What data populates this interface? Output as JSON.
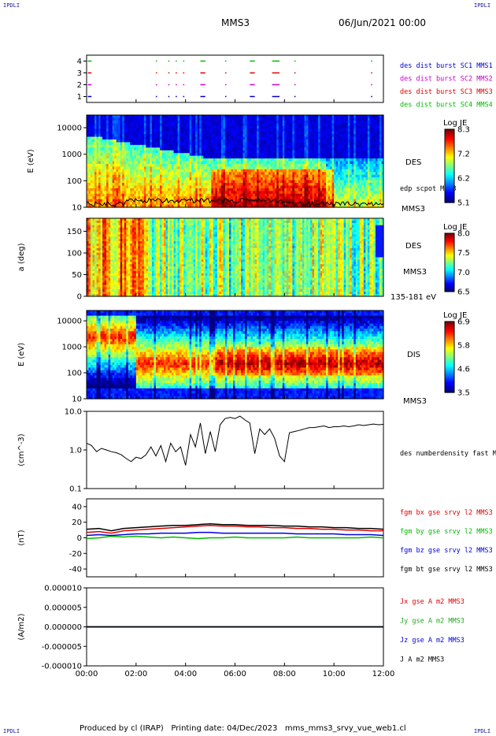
{
  "header": {
    "corner_tl": "IPDLI",
    "corner_tr": "IPDLI",
    "corner_bl": "IPDLI",
    "corner_br": "IPDLI",
    "spacecraft": "MMS3",
    "date": "06/Jun/2021 00:00"
  },
  "footer": {
    "produced": "Produced by cl (IRAP)",
    "printing": "Printing date: 04/Dec/2023",
    "filename": "mms_mms3_srvy_vue_web1.cl"
  },
  "colors": {
    "mms1": "#0000cc",
    "mms2": "#cc00cc",
    "mms3": "#dd0000",
    "mms4": "#00bb00",
    "bx": "#dd0000",
    "by": "#00bb00",
    "bz": "#0000dd",
    "bt": "#000000"
  },
  "chart_data": [
    {
      "type": "scatter",
      "panel": "burst availability",
      "y_ticks": [
        "1",
        "2",
        "3",
        "4"
      ],
      "ylim": [
        0.5,
        4.5
      ],
      "series": [
        {
          "name": "des dist burst SC1 MMS1",
          "y": 1,
          "segments_hours": [
            [
              0.05,
              0.2
            ],
            [
              2.8,
              2.83
            ],
            [
              3.3,
              3.35
            ],
            [
              3.6,
              3.65
            ],
            [
              3.9,
              3.95
            ],
            [
              4.6,
              4.8
            ],
            [
              5.6,
              5.65
            ],
            [
              6.6,
              6.8
            ],
            [
              7.5,
              7.8
            ],
            [
              8.4,
              8.45
            ],
            [
              11.5,
              11.55
            ]
          ]
        },
        {
          "name": "des dist burst SC2 MMS2",
          "y": 2,
          "segments_hours": [
            [
              0.05,
              0.2
            ],
            [
              2.8,
              2.83
            ],
            [
              3.3,
              3.35
            ],
            [
              3.6,
              3.65
            ],
            [
              3.9,
              3.95
            ],
            [
              4.6,
              4.8
            ],
            [
              5.6,
              5.65
            ],
            [
              6.6,
              6.8
            ],
            [
              7.5,
              7.8
            ],
            [
              8.4,
              8.45
            ],
            [
              11.5,
              11.55
            ]
          ]
        },
        {
          "name": "des dist burst SC3 MMS3",
          "y": 3,
          "segments_hours": [
            [
              0.05,
              0.2
            ],
            [
              2.8,
              2.83
            ],
            [
              3.3,
              3.35
            ],
            [
              3.6,
              3.65
            ],
            [
              3.9,
              3.95
            ],
            [
              4.6,
              4.8
            ],
            [
              5.6,
              5.65
            ],
            [
              6.6,
              6.8
            ],
            [
              7.5,
              7.8
            ],
            [
              8.4,
              8.45
            ],
            [
              11.5,
              11.55
            ]
          ]
        },
        {
          "name": "des dist burst SC4 MMS4",
          "y": 4,
          "segments_hours": [
            [
              0.05,
              0.2
            ],
            [
              2.8,
              2.83
            ],
            [
              3.3,
              3.35
            ],
            [
              3.6,
              3.65
            ],
            [
              3.9,
              3.95
            ],
            [
              4.6,
              4.8
            ],
            [
              5.6,
              5.65
            ],
            [
              6.6,
              6.8
            ],
            [
              7.5,
              7.8
            ],
            [
              8.4,
              8.45
            ],
            [
              11.5,
              11.55
            ]
          ]
        }
      ]
    },
    {
      "type": "heatmap",
      "panel": "electron energy spectrogram",
      "ylabel": "E (eV)",
      "y_ticks": [
        "10",
        "100",
        "1000",
        "10000"
      ],
      "ylim": [
        10,
        30000
      ],
      "log_y": true,
      "instrument": "DES",
      "spacecraft": "MMS3",
      "colorbar": {
        "label": "Log JE",
        "ticks": [
          "8.3",
          "7.2",
          "6.2",
          "5.1"
        ],
        "range": [
          5.1,
          8.3
        ]
      },
      "overlay": {
        "name": "edp scpot MMS3",
        "typical_value_eV": 12
      }
    },
    {
      "type": "heatmap",
      "panel": "electron pitch angle",
      "ylabel": "a (deg)",
      "y_ticks": [
        "0",
        "50",
        "100",
        "150"
      ],
      "ylim": [
        0,
        180
      ],
      "instrument": "DES",
      "spacecraft": "MMS3",
      "energy_range": "135-181 eV",
      "colorbar": {
        "label": "Log JE",
        "ticks": [
          "8.0",
          "7.5",
          "7.0",
          "6.5"
        ],
        "range": [
          6.5,
          8.0
        ]
      }
    },
    {
      "type": "heatmap",
      "panel": "ion energy spectrogram",
      "ylabel": "E (eV)",
      "y_ticks": [
        "10",
        "100",
        "1000",
        "10000"
      ],
      "ylim": [
        10,
        25000
      ],
      "log_y": true,
      "instrument": "DIS",
      "spacecraft": "MMS3",
      "colorbar": {
        "label": "Log JE",
        "ticks": [
          "6.9",
          "5.8",
          "4.6",
          "3.5"
        ],
        "range": [
          3.5,
          6.9
        ]
      }
    },
    {
      "type": "line",
      "panel": "electron density",
      "ylabel": "(cm^-3)",
      "y_ticks": [
        "0.1",
        "1.0",
        "10.0"
      ],
      "ylim": [
        0.1,
        10
      ],
      "log_y": true,
      "series": [
        {
          "name": "des numberdensity fast M",
          "x_hours": [
            0,
            0.2,
            0.4,
            0.6,
            0.8,
            1,
            1.2,
            1.4,
            1.6,
            1.8,
            2,
            2.2,
            2.4,
            2.6,
            2.8,
            3,
            3.2,
            3.4,
            3.6,
            3.8,
            4,
            4.2,
            4.4,
            4.6,
            4.8,
            5,
            5.2,
            5.4,
            5.6,
            5.8,
            6,
            6.2,
            6.4,
            6.6,
            6.8,
            7,
            7.2,
            7.4,
            7.6,
            7.8,
            8,
            8.2,
            8.4,
            8.6,
            8.8,
            9,
            9.2,
            9.4,
            9.6,
            9.8,
            10,
            10.2,
            10.4,
            10.6,
            10.8,
            11,
            11.2,
            11.4,
            11.6,
            11.8,
            12
          ],
          "values": [
            1.5,
            1.3,
            0.9,
            1.1,
            1.0,
            0.9,
            0.85,
            0.75,
            0.6,
            0.5,
            0.65,
            0.6,
            0.75,
            1.2,
            0.7,
            1.3,
            0.5,
            1.5,
            0.9,
            1.2,
            0.4,
            2.5,
            1.2,
            5.0,
            0.8,
            3.0,
            0.9,
            4.5,
            6.5,
            7.0,
            6.5,
            7.5,
            6.0,
            5.0,
            0.8,
            3.5,
            2.5,
            3.5,
            2.0,
            0.7,
            0.5,
            2.8,
            3.0,
            3.2,
            3.5,
            3.8,
            3.8,
            4.0,
            4.2,
            3.8,
            4.0,
            4.0,
            4.2,
            4.0,
            4.2,
            4.5,
            4.3,
            4.5,
            4.7,
            4.5,
            4.6
          ]
        }
      ]
    },
    {
      "type": "line",
      "panel": "magnetic field",
      "ylabel": "(nT)",
      "y_ticks": [
        "-40",
        "-20",
        "0",
        "20",
        "40"
      ],
      "ylim": [
        -50,
        50
      ],
      "x_hours": [
        0,
        0.5,
        1,
        1.5,
        2,
        2.5,
        3,
        3.5,
        4,
        4.5,
        5,
        5.5,
        6,
        6.5,
        7,
        7.5,
        8,
        8.5,
        9,
        9.5,
        10,
        10.5,
        11,
        11.5,
        12
      ],
      "series": [
        {
          "name": "fgm bx gse srvy l2 MMS3",
          "values": [
            7,
            8,
            6,
            9,
            10,
            11,
            12,
            13,
            14,
            15,
            16,
            15,
            15,
            14,
            14,
            13,
            13,
            12,
            12,
            11,
            11,
            10,
            10,
            9,
            9
          ]
        },
        {
          "name": "fgm by gse srvy l2 MMS3",
          "values": [
            -1,
            0,
            2,
            1,
            2,
            1,
            0,
            1,
            0,
            -1,
            0,
            0,
            1,
            0,
            0,
            0,
            0,
            1,
            0,
            0,
            0,
            0,
            0,
            1,
            0
          ]
        },
        {
          "name": "fgm bz gse srvy l2 MMS3",
          "values": [
            3,
            4,
            3,
            4,
            5,
            5,
            6,
            6,
            6,
            7,
            7,
            6,
            6,
            6,
            6,
            6,
            6,
            5,
            5,
            5,
            5,
            4,
            4,
            4,
            3
          ]
        },
        {
          "name": "fgm bt gse srvy l2 MMS3",
          "values": [
            11,
            12,
            9,
            12,
            13,
            14,
            15,
            16,
            16,
            17,
            18,
            17,
            17,
            16,
            16,
            16,
            15,
            15,
            14,
            14,
            13,
            13,
            12,
            12,
            11
          ]
        }
      ]
    },
    {
      "type": "line",
      "panel": "current density",
      "ylabel": "(A/m2)",
      "y_ticks": [
        "-0.000010",
        "-0.000005",
        "0.000000",
        "0.000005",
        "0.000010"
      ],
      "ylim": [
        -1e-05,
        1e-05
      ],
      "x_hours": [
        0,
        12
      ],
      "series": [
        {
          "name": "Jx gse A m2 MMS3",
          "values": [
            0,
            0
          ]
        },
        {
          "name": "Jy gse A m2 MMS3",
          "values": [
            0,
            0
          ]
        },
        {
          "name": "Jz gse A m2 MMS3",
          "values": [
            0,
            0
          ]
        },
        {
          "name": "J A m2 MMS3",
          "values": [
            0,
            0
          ]
        }
      ]
    }
  ],
  "x_axis": {
    "ticks": [
      "00:00",
      "02:00",
      "04:00",
      "06:00",
      "08:00",
      "10:00",
      "12:00"
    ],
    "range_hours": [
      0,
      12
    ]
  }
}
